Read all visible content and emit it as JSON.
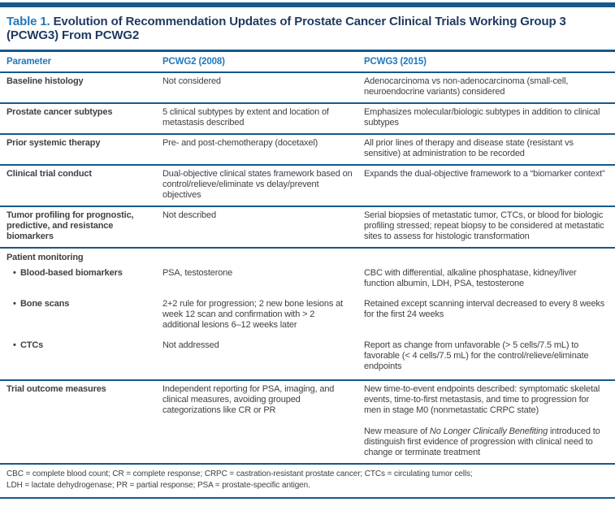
{
  "colors": {
    "rule": "#16598C",
    "accent": "#2079BC",
    "titledark": "#1E3A5F",
    "body": "#414042"
  },
  "title": {
    "table_number": "Table 1.",
    "text": "Evolution of Recommendation Updates of Prostate Cancer Clinical Trials Working Group 3 (PCWG3) From PCWG2"
  },
  "table": {
    "columns": [
      "Parameter",
      "PCWG2 (2008)",
      "PCWG3 (2015)"
    ],
    "rows": [
      {
        "parameter": "Baseline histology",
        "pcwg2": "Not considered",
        "pcwg3": "Adenocarcinoma vs non-adenocarcinoma (small-cell, neuroendocrine variants) considered"
      },
      {
        "parameter": "Prostate cancer subtypes",
        "pcwg2": "5 clinical subtypes by extent and location of metastasis described",
        "pcwg3": "Emphasizes molecular/biologic subtypes in addition to clinical subtypes"
      },
      {
        "parameter": "Prior systemic therapy",
        "pcwg2": "Pre- and post-chemotherapy (docetaxel)",
        "pcwg3": "All prior lines of therapy and disease state (resistant vs sensitive) at administration to be recorded"
      },
      {
        "parameter": "Clinical trial conduct",
        "pcwg2": "Dual-objective clinical states framework based on control/relieve/eliminate vs delay/prevent objectives",
        "pcwg3": "Expands the dual-objective framework to a “biomarker context”"
      },
      {
        "parameter": "Tumor profiling for prognostic, predictive, and resistance biomarkers",
        "pcwg2": "Not described",
        "pcwg3": "Serial biopsies of metastatic tumor, CTCs, or blood for biologic profiling stressed; repeat biopsy to be considered at metastatic sites to assess for histologic transformation"
      }
    ],
    "group": {
      "heading": "Patient monitoring",
      "bullet": "•",
      "subrows": [
        {
          "parameter": "Blood-based biomarkers",
          "pcwg2": "PSA, testosterone",
          "pcwg3": "CBC with differential, alkaline phosphatase, kidney/liver function albumin, LDH, PSA, testosterone"
        },
        {
          "parameter": "Bone scans",
          "pcwg2": "2+2 rule for progression; 2 new bone lesions at week 12 scan and confirmation with > 2 additional lesions 6–12 weeks later",
          "pcwg3": "Retained except scanning interval decreased to every 8 weeks for the first 24 weeks"
        },
        {
          "parameter": "CTCs",
          "pcwg2": "Not addressed",
          "pcwg3": "Report as change from unfavorable (> 5 cells/7.5 mL) to favorable (< 4 cells/7.5 mL) for the control/relieve/eliminate endpoints"
        }
      ]
    },
    "last_row": {
      "parameter": "Trial outcome measures",
      "pcwg2": "Independent reporting for PSA, imaging, and clinical measures, avoiding grouped categorizations like CR or PR",
      "pcwg3_p1": "New time-to-event endpoints described: symptomatic skeletal events, time-to-first metastasis, and time to progression for men in stage M0 (nonmetastatic CRPC state)",
      "pcwg3_p2_prefix": "New measure of ",
      "pcwg3_p2_italic": "No Longer Clinically Benefiting",
      "pcwg3_p2_suffix": " introduced to distinguish first evidence of progression with clinical need to change or terminate treatment"
    }
  },
  "footnotes": [
    "CBC = complete blood count; CR = complete response; CRPC = castration-resistant prostate cancer; CTCs = circulating tumor cells;",
    "LDH = lactate dehydrogenase; PR = partial response; PSA = prostate-specific antigen."
  ]
}
